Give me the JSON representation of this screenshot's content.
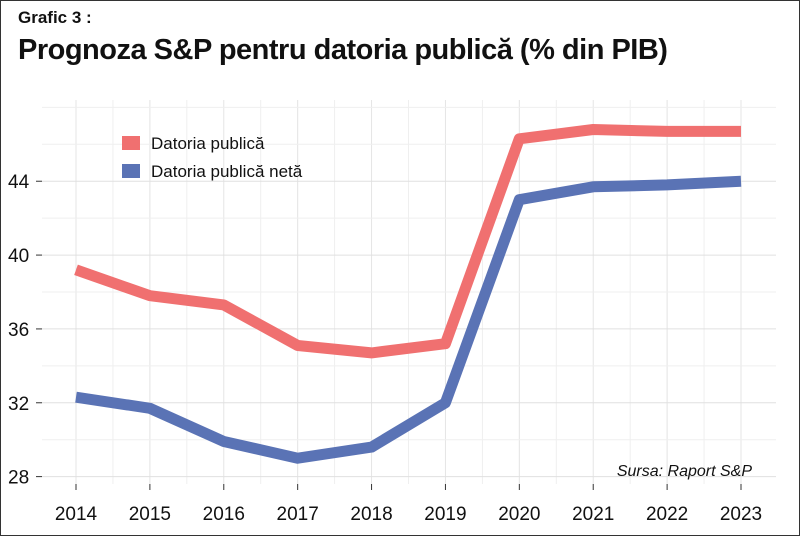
{
  "header": {
    "label": "Grafic 3 :",
    "title": "Prognoza S&P pentru datoria publică (% din PIB)"
  },
  "chart_data": {
    "type": "line",
    "x": [
      "2014",
      "2015",
      "2016",
      "2017",
      "2018",
      "2019",
      "2020",
      "2021",
      "2022",
      "2023"
    ],
    "series": [
      {
        "name": "Datoria publică",
        "color": "#f07070",
        "values": [
          39.2,
          37.8,
          37.3,
          35.1,
          34.7,
          35.2,
          46.3,
          46.8,
          46.7,
          46.7
        ]
      },
      {
        "name": "Datoria publică netă",
        "color": "#5a73b5",
        "values": [
          32.3,
          31.7,
          29.9,
          29.0,
          29.6,
          32.0,
          43.0,
          43.7,
          43.8,
          44.0
        ]
      }
    ],
    "yticks": [
      28,
      32,
      36,
      40,
      44
    ],
    "ylim": [
      27.6,
      48.4
    ],
    "grid": true,
    "legend_position": "top-left",
    "source": "Sursa: Raport S&P"
  }
}
